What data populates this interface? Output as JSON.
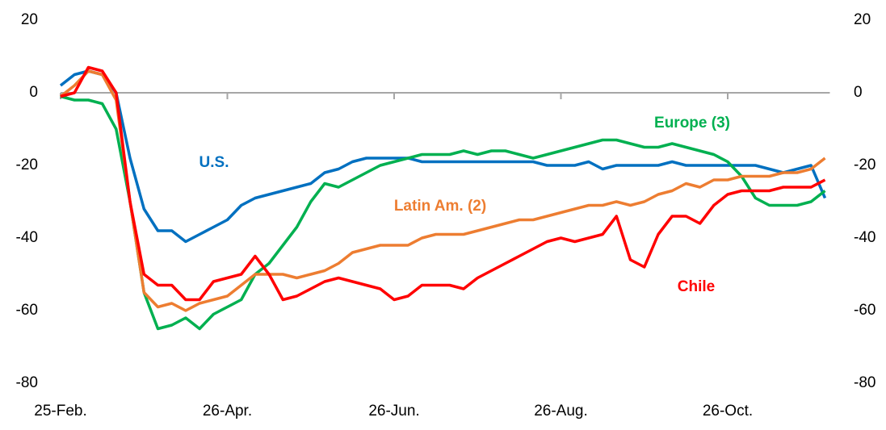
{
  "chart_data": {
    "type": "line",
    "categories": [
      "25-Feb.",
      null,
      null,
      null,
      null,
      null,
      null,
      null,
      null,
      null,
      null,
      null,
      "26-Apr.",
      null,
      null,
      null,
      null,
      null,
      null,
      null,
      null,
      null,
      null,
      null,
      "26-Jun.",
      null,
      null,
      null,
      null,
      null,
      null,
      null,
      null,
      null,
      null,
      null,
      "26-Aug.",
      null,
      null,
      null,
      null,
      null,
      null,
      null,
      null,
      null,
      null,
      null,
      "26-Oct.",
      null,
      null,
      null,
      null,
      null,
      null,
      null
    ],
    "series": [
      {
        "name": "U.S.",
        "color": "#0070c0",
        "values": [
          2,
          5,
          6,
          5,
          0,
          -18,
          -32,
          -38,
          -38,
          -41,
          -39,
          -37,
          -35,
          -31,
          -29,
          -28,
          -27,
          -26,
          -25,
          -22,
          -21,
          -19,
          -18,
          -18,
          -18,
          -18,
          -19,
          -19,
          -19,
          -19,
          -19,
          -19,
          -19,
          -19,
          -19,
          -20,
          -20,
          -20,
          -19,
          -21,
          -20,
          -20,
          -20,
          -20,
          -19,
          -20,
          -20,
          -20,
          -20,
          -20,
          -20,
          -21,
          -22,
          -21,
          -20,
          -29
        ]
      },
      {
        "name": "Europe (3)",
        "color": "#00b050",
        "values": [
          -1,
          -2,
          -2,
          -3,
          -10,
          -30,
          -55,
          -65,
          -64,
          -62,
          -65,
          -61,
          -59,
          -57,
          -50,
          -47,
          -42,
          -37,
          -30,
          -25,
          -26,
          -24,
          -22,
          -20,
          -19,
          -18,
          -17,
          -17,
          -17,
          -16,
          -17,
          -16,
          -16,
          -17,
          -18,
          -17,
          -16,
          -15,
          -14,
          -13,
          -13,
          -14,
          -15,
          -15,
          -14,
          -15,
          -16,
          -17,
          -19,
          -23,
          -29,
          -31,
          -31,
          -31,
          -30,
          -27
        ]
      },
      {
        "name": "Latin Am. (2)",
        "color": "#ed7d31",
        "values": [
          -1,
          2,
          6,
          5,
          -2,
          -30,
          -55,
          -59,
          -58,
          -60,
          -58,
          -57,
          -56,
          -53,
          -50,
          -50,
          -50,
          -51,
          -50,
          -49,
          -47,
          -44,
          -43,
          -42,
          -42,
          -42,
          -40,
          -39,
          -39,
          -39,
          -38,
          -37,
          -36,
          -35,
          -35,
          -34,
          -33,
          -32,
          -31,
          -31,
          -30,
          -31,
          -30,
          -28,
          -27,
          -25,
          -26,
          -24,
          -24,
          -23,
          -23,
          -23,
          -22,
          -22,
          -21,
          -18
        ]
      },
      {
        "name": "Chile",
        "color": "#ff0000",
        "values": [
          -1,
          0,
          7,
          6,
          0,
          -30,
          -50,
          -53,
          -53,
          -57,
          -57,
          -52,
          -51,
          -50,
          -45,
          -50,
          -57,
          -56,
          -54,
          -52,
          -51,
          -52,
          -53,
          -54,
          -57,
          -56,
          -53,
          -53,
          -53,
          -54,
          -51,
          -49,
          -47,
          -45,
          -43,
          -41,
          -40,
          -41,
          -40,
          -39,
          -34,
          -46,
          -48,
          -39,
          -34,
          -34,
          -36,
          -31,
          -28,
          -27,
          -27,
          -27,
          -26,
          -26,
          -26,
          -24
        ]
      }
    ],
    "ylim": [
      -80,
      20
    ],
    "yticks": [
      -80,
      -60,
      -40,
      -20,
      0,
      20
    ],
    "y2lim": [
      -80,
      20
    ],
    "y2ticks": [
      -80,
      -60,
      -40,
      -20,
      0,
      20
    ]
  }
}
